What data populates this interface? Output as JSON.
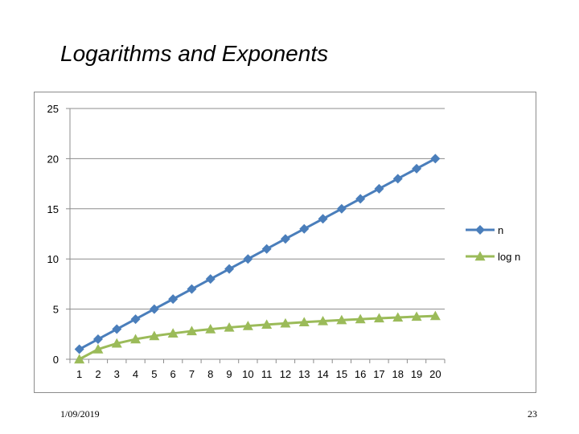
{
  "slide": {
    "title": "Logarithms and Exponents",
    "date": "1/09/2019",
    "page_number": "23"
  },
  "chart_data": {
    "type": "line",
    "x": [
      1,
      2,
      3,
      4,
      5,
      6,
      7,
      8,
      9,
      10,
      11,
      12,
      13,
      14,
      15,
      16,
      17,
      18,
      19,
      20
    ],
    "x_tick_labels": [
      "1",
      "2",
      "3",
      "4",
      "5",
      "6",
      "7",
      "8",
      "9",
      "10",
      "11",
      "12",
      "13",
      "14",
      "15",
      "16",
      "17",
      "18",
      "19",
      "20"
    ],
    "ylim": [
      0,
      25
    ],
    "y_ticks": [
      0,
      5,
      10,
      15,
      20,
      25
    ],
    "y_tick_labels": [
      "0",
      "5",
      "10",
      "15",
      "20",
      "25"
    ],
    "grid": "horizontal",
    "legend": "right",
    "series": [
      {
        "name": "n",
        "color": "#4a7ebb",
        "marker": "diamond",
        "values": [
          1,
          2,
          3,
          4,
          5,
          6,
          7,
          8,
          9,
          10,
          11,
          12,
          13,
          14,
          15,
          16,
          17,
          18,
          19,
          20
        ]
      },
      {
        "name": "log n",
        "color": "#9bbb59",
        "marker": "triangle",
        "values": [
          0,
          1,
          1.58,
          2,
          2.32,
          2.58,
          2.81,
          3,
          3.17,
          3.32,
          3.46,
          3.58,
          3.7,
          3.81,
          3.91,
          4,
          4.09,
          4.17,
          4.25,
          4.32
        ]
      }
    ]
  }
}
